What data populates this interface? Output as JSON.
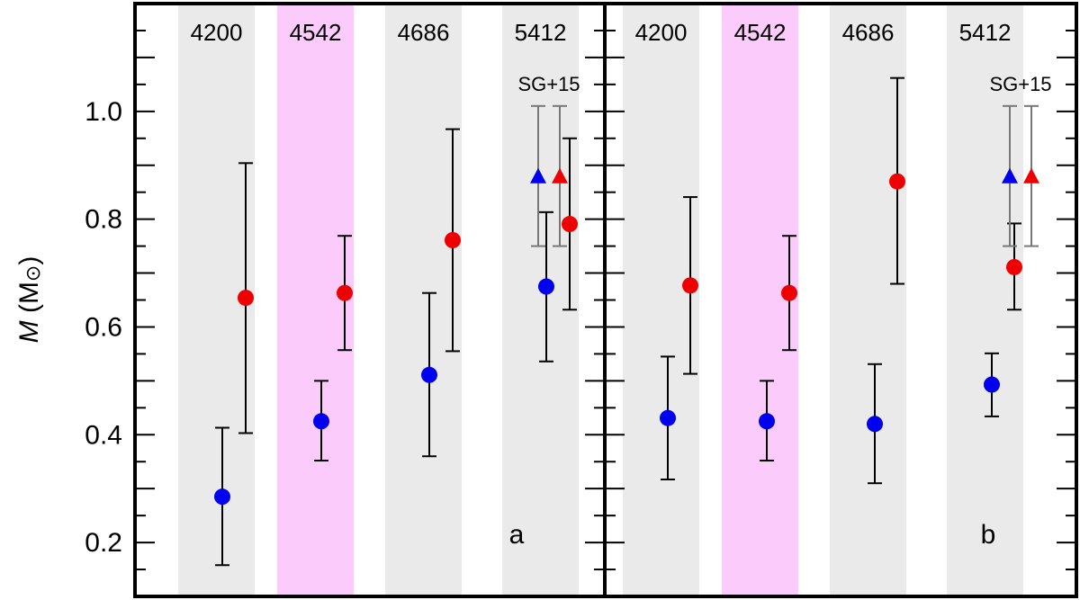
{
  "chart_data": [
    {
      "type": "scatter",
      "panel_label": "a",
      "ylabel": "M (M⊙)",
      "ylabel_italic": "M",
      "ylabel_unit": "(M",
      "ylabel_sym": "⊙",
      "ylabel_close": ")",
      "ylim": [
        0.1,
        1.2
      ],
      "yticks": [
        0.2,
        0.4,
        0.6,
        0.8,
        1.0
      ],
      "ytick_labels": [
        "0.2",
        "0.4",
        "0.6",
        "0.8",
        "1.0"
      ],
      "groups": [
        {
          "label": "4200",
          "band": "#eaeaea"
        },
        {
          "label": "4542",
          "band": "#fbcbfb"
        },
        {
          "label": "4686",
          "band": "#eaeaea"
        },
        {
          "label": "5412",
          "band": "#eaeaea"
        }
      ],
      "series": [
        {
          "color": "#0000ee",
          "marker": "circle",
          "points": [
            {
              "group": 0,
              "y": 0.285,
              "lo": 0.158,
              "hi": 0.413
            },
            {
              "group": 1,
              "y": 0.425,
              "lo": 0.352,
              "hi": 0.5
            },
            {
              "group": 2,
              "y": 0.511,
              "lo": 0.36,
              "hi": 0.663
            },
            {
              "group": 3,
              "y": 0.675,
              "lo": 0.536,
              "hi": 0.813
            }
          ]
        },
        {
          "color": "#ee0000",
          "marker": "circle",
          "points": [
            {
              "group": 0,
              "y": 0.654,
              "lo": 0.403,
              "hi": 0.904
            },
            {
              "group": 1,
              "y": 0.663,
              "lo": 0.557,
              "hi": 0.769
            },
            {
              "group": 2,
              "y": 0.761,
              "lo": 0.555,
              "hi": 0.967
            },
            {
              "group": 3,
              "y": 0.791,
              "lo": 0.632,
              "hi": 0.95
            }
          ]
        }
      ],
      "reference": {
        "label": "SG+15",
        "group": 3,
        "errorbar_color": "#777777",
        "points": [
          {
            "color": "#0000ee",
            "marker": "triangle",
            "y": 0.88,
            "lo": 0.75,
            "hi": 1.01
          },
          {
            "color": "#ee0000",
            "marker": "triangle",
            "y": 0.88,
            "lo": 0.75,
            "hi": 1.01
          }
        ]
      }
    },
    {
      "type": "scatter",
      "panel_label": "b",
      "ylim": [
        0.1,
        1.2
      ],
      "groups": [
        {
          "label": "4200",
          "band": "#eaeaea"
        },
        {
          "label": "4542",
          "band": "#fbcbfb"
        },
        {
          "label": "4686",
          "band": "#eaeaea"
        },
        {
          "label": "5412",
          "band": "#eaeaea"
        }
      ],
      "series": [
        {
          "color": "#0000ee",
          "marker": "circle",
          "points": [
            {
              "group": 0,
              "y": 0.431,
              "lo": 0.317,
              "hi": 0.545
            },
            {
              "group": 1,
              "y": 0.425,
              "lo": 0.352,
              "hi": 0.5
            },
            {
              "group": 2,
              "y": 0.42,
              "lo": 0.31,
              "hi": 0.531
            },
            {
              "group": 3,
              "y": 0.493,
              "lo": 0.434,
              "hi": 0.551
            }
          ]
        },
        {
          "color": "#ee0000",
          "marker": "circle",
          "points": [
            {
              "group": 0,
              "y": 0.677,
              "lo": 0.513,
              "hi": 0.841
            },
            {
              "group": 1,
              "y": 0.663,
              "lo": 0.557,
              "hi": 0.769
            },
            {
              "group": 2,
              "y": 0.87,
              "lo": 0.68,
              "hi": 1.062
            },
            {
              "group": 3,
              "y": 0.711,
              "lo": 0.632,
              "hi": 0.792
            }
          ]
        }
      ],
      "reference": {
        "label": "SG+15",
        "group": 3,
        "errorbar_color": "#777777",
        "points": [
          {
            "color": "#0000ee",
            "marker": "triangle",
            "y": 0.88,
            "lo": 0.75,
            "hi": 1.01
          },
          {
            "color": "#ee0000",
            "marker": "triangle",
            "y": 0.88,
            "lo": 0.75,
            "hi": 1.01
          }
        ]
      }
    }
  ]
}
